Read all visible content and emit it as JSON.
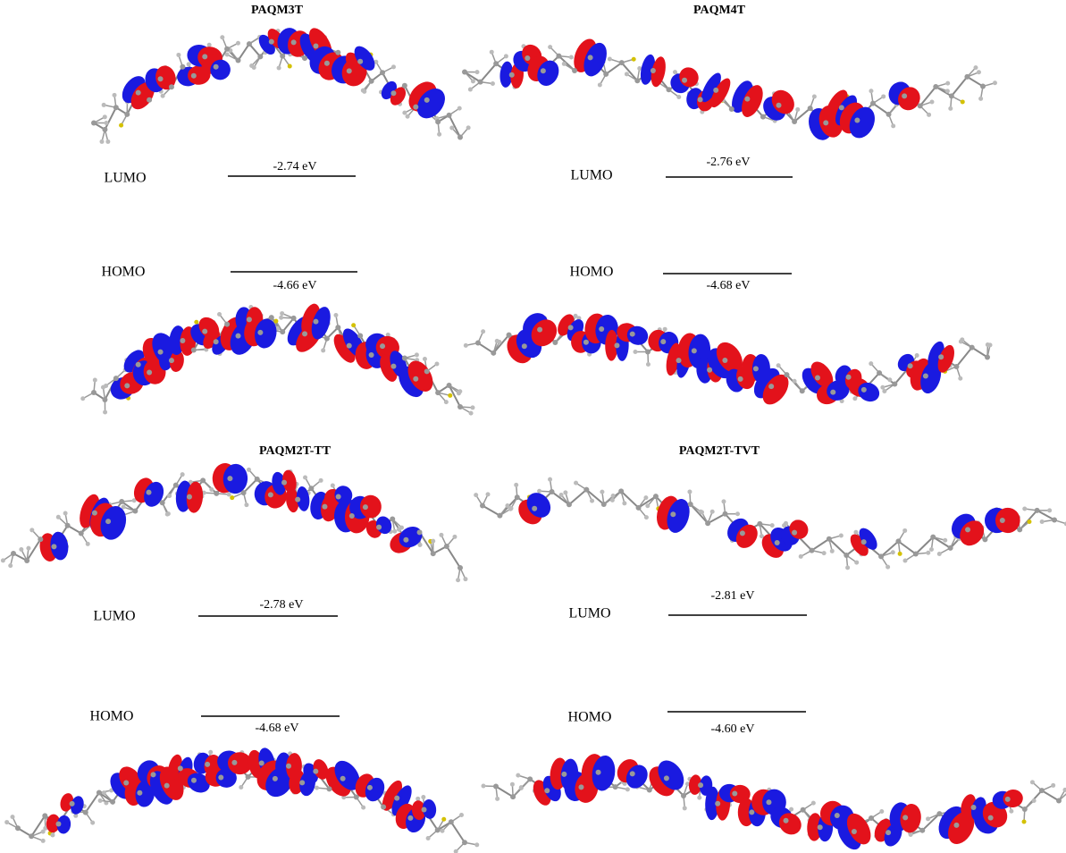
{
  "panels": [
    {
      "title": "PAQM3T",
      "lumo": {
        "label": "LUMO",
        "energy": "-2.74 eV"
      },
      "homo": {
        "label": "HOMO",
        "energy": "-4.66 eV"
      }
    },
    {
      "title": "PAQM4T",
      "lumo": {
        "label": "LUMO",
        "energy": "-2.76 eV"
      },
      "homo": {
        "label": "HOMO",
        "energy": "-4.68 eV"
      }
    },
    {
      "title": "PAQM2T-TT",
      "lumo": {
        "label": "LUMO",
        "energy": "-2.78 eV"
      },
      "homo": {
        "label": "HOMO",
        "energy": "-4.68 eV"
      }
    },
    {
      "title": "PAQM2T-TVT",
      "lumo": {
        "label": "LUMO",
        "energy": "-2.81 eV"
      },
      "homo": {
        "label": "HOMO",
        "energy": "-4.60 eV"
      }
    }
  ]
}
